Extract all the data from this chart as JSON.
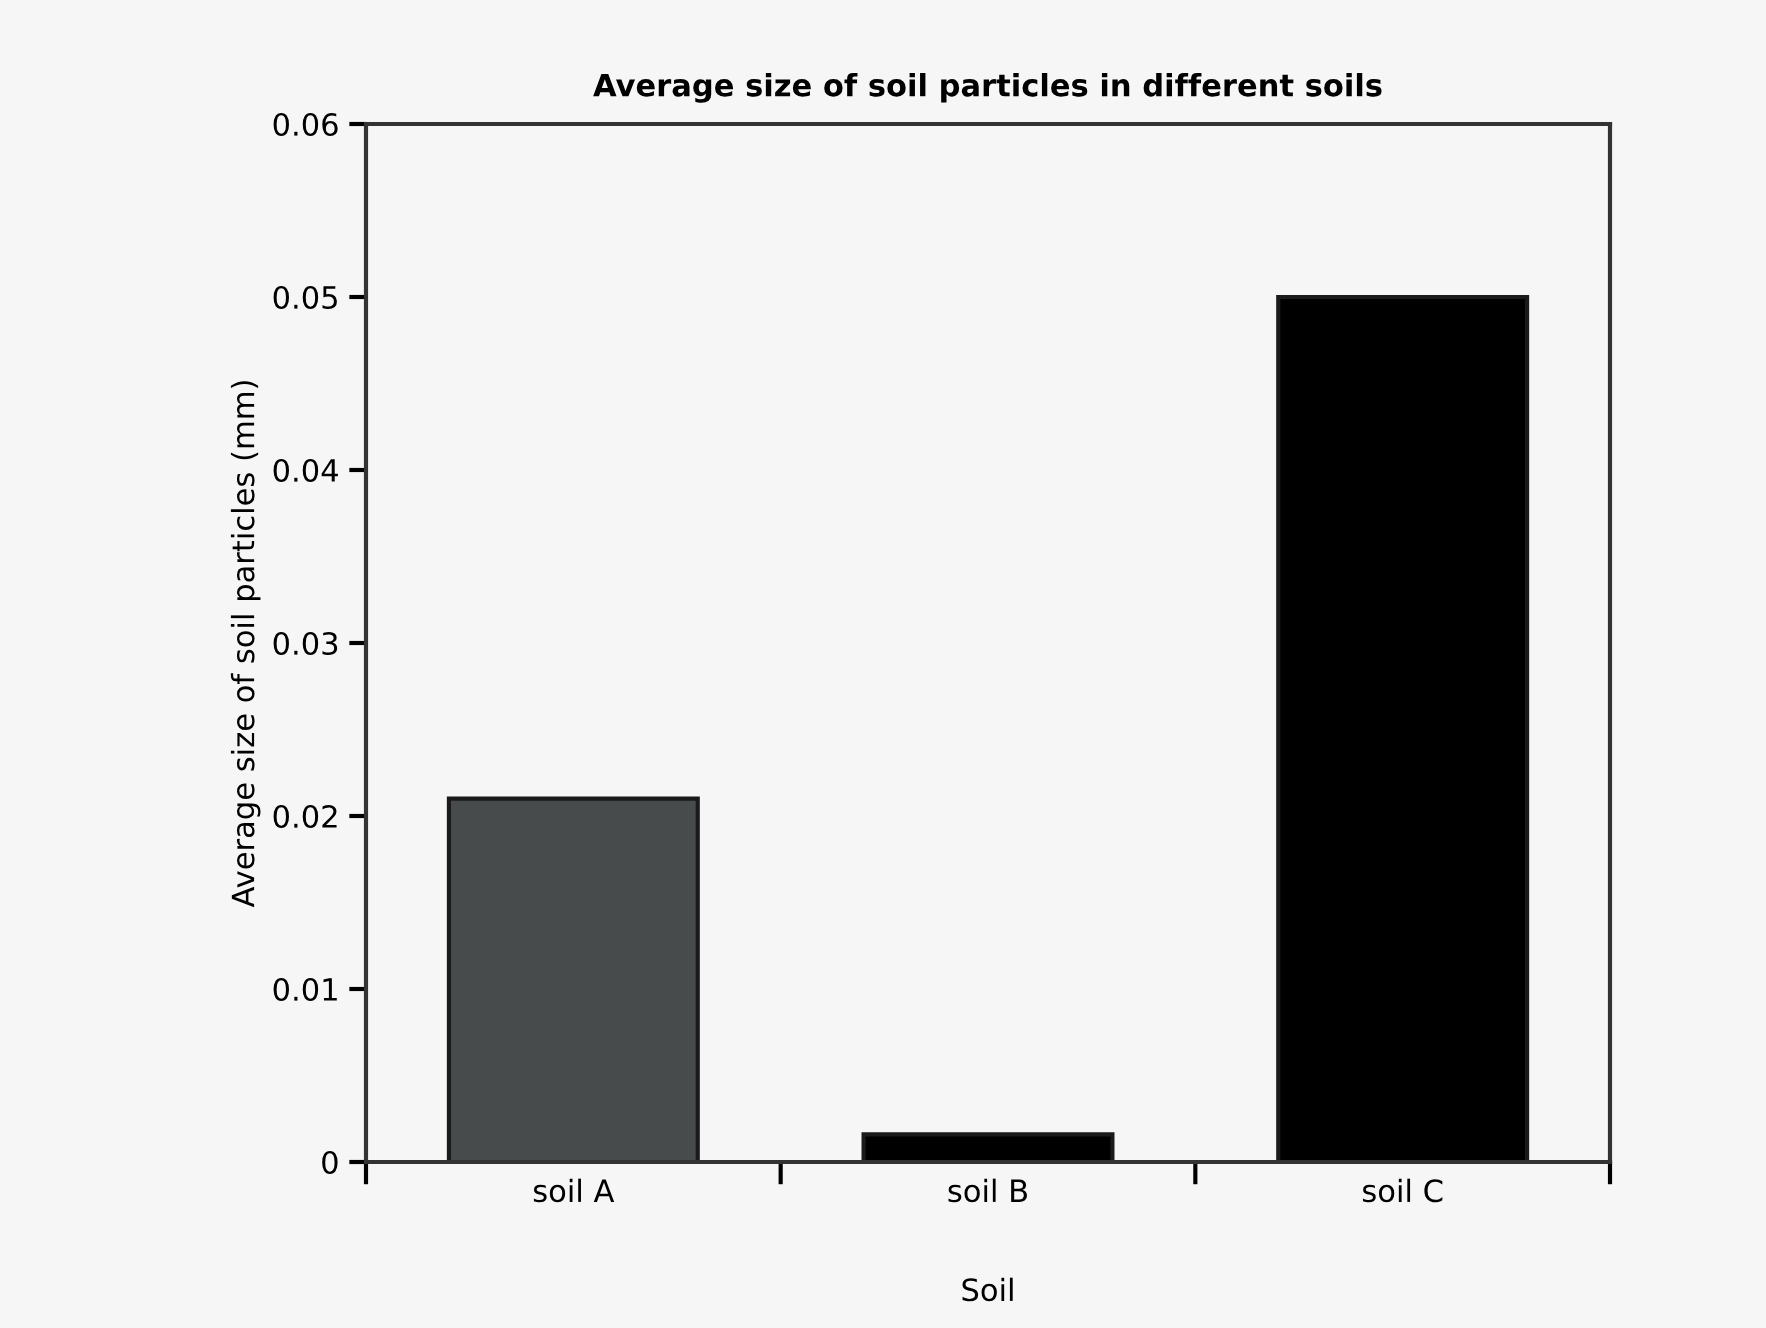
{
  "chart_data": {
    "type": "bar",
    "title": "Average size of soil particles in different soils",
    "xlabel": "Soil",
    "ylabel": "Average size of soil particles (mm)",
    "categories": [
      "soil A",
      "soil B",
      "soil C"
    ],
    "values": [
      0.021,
      0.0016,
      0.05
    ],
    "colors": [
      "#474b4c",
      "#000000",
      "#000000"
    ],
    "ylim": [
      0,
      0.06
    ],
    "yticks": [
      {
        "value": 0,
        "label": "0"
      },
      0.01,
      0.02,
      0.03,
      0.04,
      0.05,
      0.06
    ],
    "grid": false
  }
}
